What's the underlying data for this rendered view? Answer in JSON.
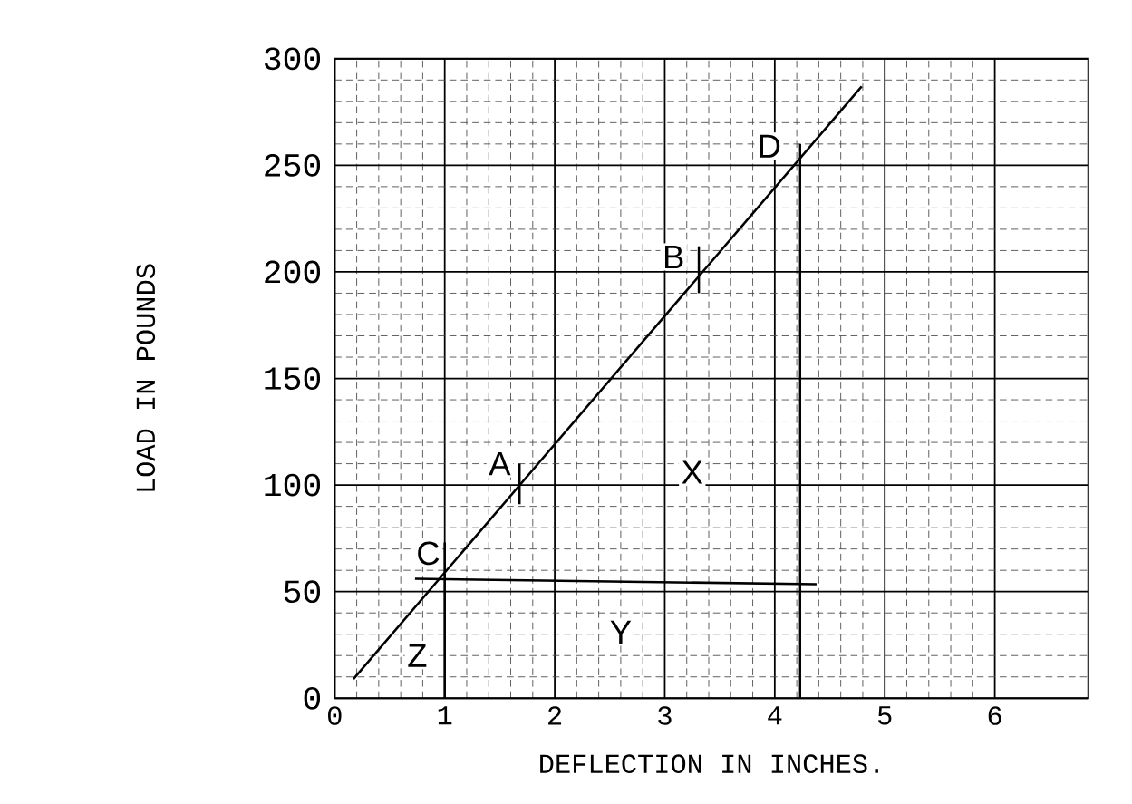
{
  "chart_data": {
    "type": "line",
    "xlabel": "DEFLECTION  IN  INCHES.",
    "ylabel": "LOAD  IN  POUNDS",
    "xlim": [
      0,
      6.85
    ],
    "ylim": [
      0,
      300
    ],
    "xticks": [
      0,
      1,
      2,
      3,
      4,
      5,
      6
    ],
    "yticks": [
      0,
      50,
      100,
      150,
      200,
      250,
      300
    ],
    "grid": true,
    "marker": "none",
    "line_style": "solid",
    "series": [
      {
        "color": "#000000",
        "x": [
          0.17,
          4.79
        ],
        "values": [
          9,
          287
        ]
      },
      {
        "color": "#000000",
        "x": [
          1.0,
          1.0
        ],
        "values": [
          0,
          73
        ]
      },
      {
        "color": "#000000",
        "x": [
          0.73,
          4.38
        ],
        "values": [
          56,
          53.5
        ]
      },
      {
        "color": "#000000",
        "x": [
          4.23,
          4.23
        ],
        "values": [
          0,
          260
        ]
      },
      {
        "color": "#000000",
        "x": [
          1.68,
          1.68
        ],
        "values": [
          91,
          110
        ]
      },
      {
        "color": "#000000",
        "x": [
          3.31,
          3.31
        ],
        "values": [
          190,
          212
        ]
      }
    ],
    "annotations": [
      "A",
      "B",
      "C",
      "D",
      "X",
      "Y",
      "Z"
    ]
  }
}
